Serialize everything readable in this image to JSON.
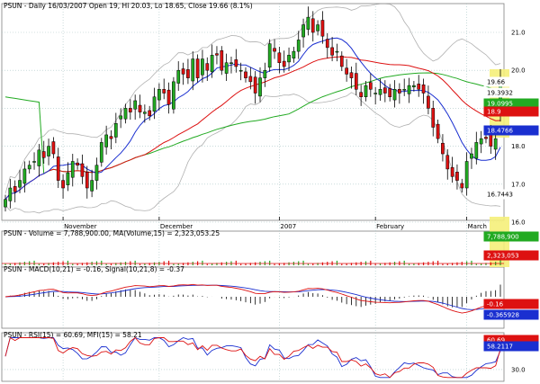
{
  "header": "PSUN - Daily 16/03/2007 Open 19, Hi 20.03, Lo 18.65, Close 19.66 (8.1%)",
  "price_axis_ticks": [
    "21.0",
    "20.0",
    "19.0",
    "18.0",
    "17.0",
    "16.0"
  ],
  "month_labels": [
    "November",
    "December",
    "2007",
    "February",
    "March"
  ],
  "volume_label": "PSUN - Volume = 7,788,900.00, MA(Volume,15) = 2,323,053.25",
  "macd_label": "PSUN - MACD(10,21) = -0.16, Signal(10,21,8) = -0.37",
  "rsi_label": "PSUN - RSI(15) = 60.69, MFI(15) = 58.21",
  "rsi_ticks": [
    "30.0"
  ],
  "price_tags": [
    {
      "text": "19.66",
      "bg": "#ffffff",
      "fg": "#000000"
    },
    {
      "text": "19.3932",
      "bg": "#ffffff",
      "fg": "#000000"
    },
    {
      "text": "19.0995",
      "bg": "#22aa22",
      "fg": "#ffffff"
    },
    {
      "text": "18.9",
      "bg": "#dd1111",
      "fg": "#ffffff"
    },
    {
      "text": "18.4766",
      "bg": "#1a2fd0",
      "fg": "#ffffff"
    },
    {
      "text": "16.7443",
      "bg": "#ffffff",
      "fg": "#000000"
    }
  ],
  "volume_tags": [
    {
      "text": "7,788,900",
      "bg": "#22aa22",
      "fg": "#ffffff"
    },
    {
      "text": "2,323,053",
      "bg": "#dd1111",
      "fg": "#ffffff"
    }
  ],
  "macd_tags": [
    {
      "text": "-0.16",
      "bg": "#dd1111",
      "fg": "#ffffff"
    },
    {
      "text": "-0.365928",
      "bg": "#1a2fd0",
      "fg": "#ffffff"
    }
  ],
  "rsi_tags": [
    {
      "text": "60.69",
      "bg": "#dd1111",
      "fg": "#ffffff"
    },
    {
      "text": "58.2117",
      "bg": "#1a2fd0",
      "fg": "#ffffff"
    }
  ],
  "colors": {
    "up": "#22aa22",
    "down": "#dd1111",
    "ma_short": "#1a2fd0",
    "ma_mid": "#dd1111",
    "ma_long": "#22aa22",
    "band": "#b0b0b0",
    "grid": "#a8c4c4",
    "highlight": "#f5f07a"
  },
  "chart_data": [
    {
      "type": "candlestick",
      "title": "PSUN - Daily 16/03/2007 Open 19, Hi 20.03, Lo 18.65, Close 19.66 (8.1%)",
      "ylim": [
        15.8,
        21.6
      ],
      "y_ticks": [
        16.0,
        17.0,
        18.0,
        19.0,
        20.0,
        21.0
      ],
      "x_labels": [
        "November",
        "December",
        "2007",
        "February",
        "March"
      ],
      "last_bar": {
        "open": 19.0,
        "high": 20.03,
        "low": 18.65,
        "close": 19.66
      },
      "closes": [
        16.6,
        16.9,
        16.8,
        17.1,
        17.4,
        17.5,
        17.6,
        17.9,
        17.7,
        18.0,
        17.8,
        17.1,
        16.9,
        17.3,
        17.6,
        17.5,
        17.2,
        16.9,
        17.1,
        17.5,
        18.1,
        18.3,
        18.2,
        18.6,
        18.8,
        19.0,
        18.9,
        19.2,
        18.9,
        18.9,
        18.8,
        19.3,
        19.5,
        19.4,
        19.1,
        19.7,
        20.0,
        19.9,
        19.8,
        20.3,
        19.8,
        20.3,
        20.0,
        20.4,
        20.4,
        20.0,
        20.2,
        20.2,
        20.1,
        20.0,
        19.8,
        19.7,
        19.4,
        19.8,
        20.0,
        20.7,
        20.5,
        20.2,
        20.1,
        20.4,
        20.5,
        20.8,
        21.2,
        21.4,
        21.0,
        21.2,
        20.9,
        20.6,
        20.4,
        20.5,
        20.1,
        19.9,
        19.8,
        19.5,
        19.3,
        19.6,
        19.5,
        19.4,
        19.5,
        19.4,
        19.3,
        19.5,
        19.4,
        19.5,
        19.6,
        19.6,
        19.5,
        19.4,
        19.0,
        18.5,
        18.2,
        17.8,
        17.4,
        17.2,
        17.1,
        16.9,
        17.6,
        17.8,
        18.1,
        18.2,
        18.2,
        18.0,
        18.2,
        19.66
      ],
      "volume_values": [
        7788900
      ],
      "volume_ma15": 2323053.25,
      "macd": -0.16,
      "signal": -0.37,
      "rsi15": 60.69,
      "mfi15": 58.21
    }
  ]
}
